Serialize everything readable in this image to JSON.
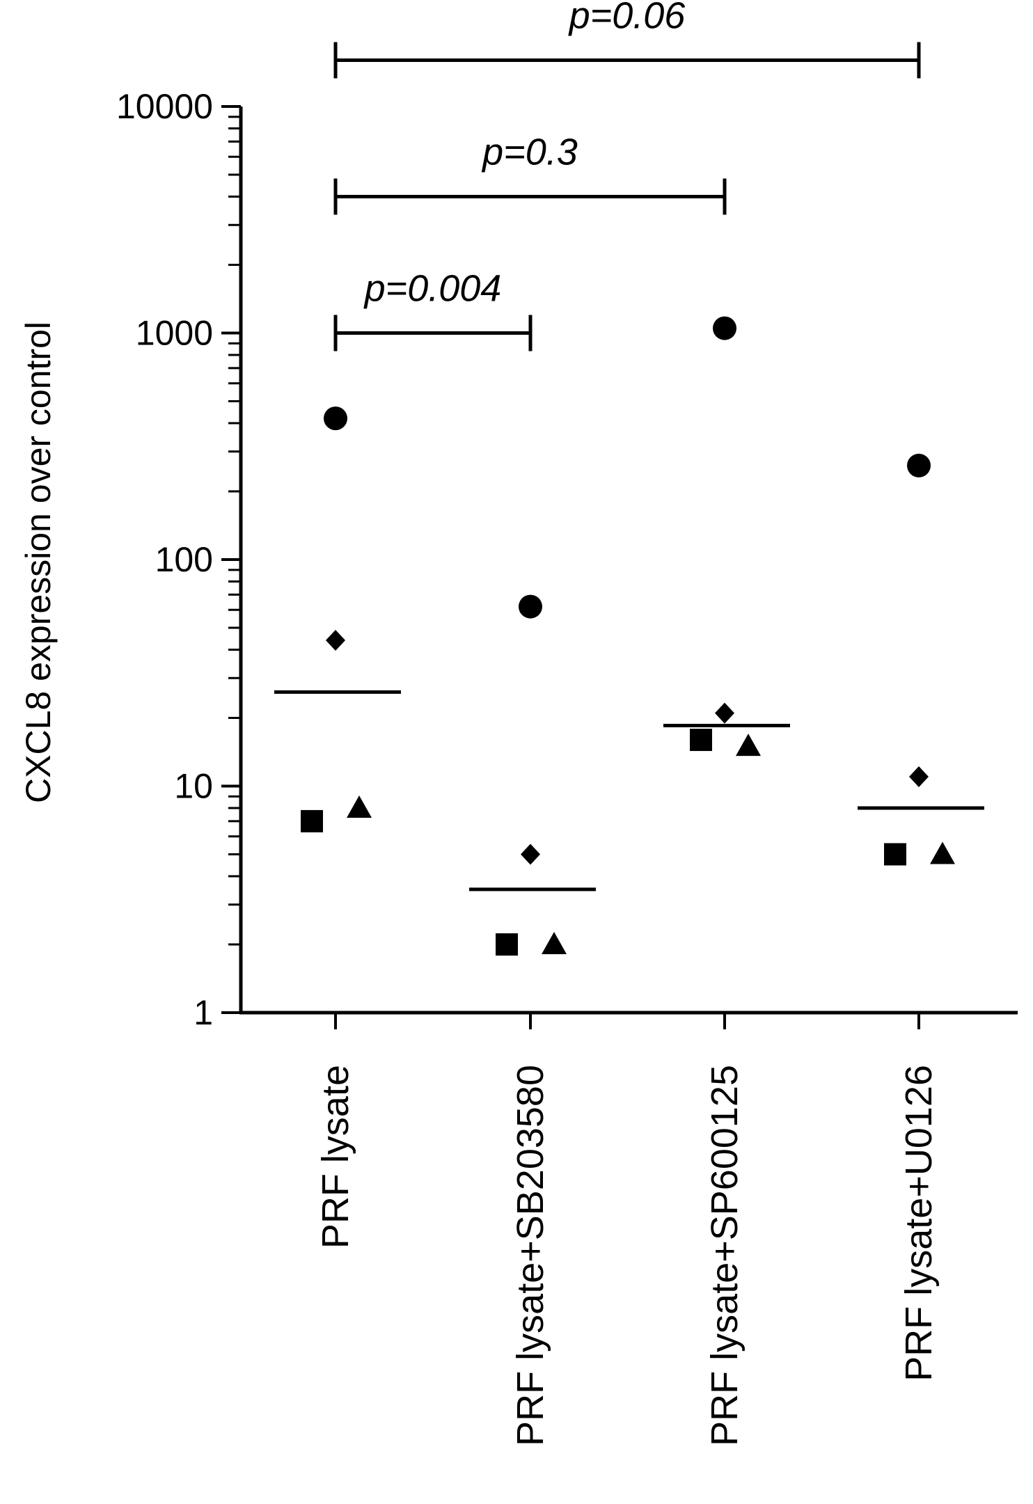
{
  "chart_data": {
    "type": "scatter",
    "ylabel": "CXCL8 expression over control",
    "yscale": "log",
    "ylim": [
      1,
      10000
    ],
    "yticks": [
      1,
      10,
      100,
      1000,
      10000
    ],
    "ytick_labels": [
      "1",
      "10",
      "100",
      "1000",
      "10000"
    ],
    "categories": [
      "PRF lysate",
      "PRF lysate+SB203580",
      "PRF lysate+SP600125",
      "PRF lysate+U0126"
    ],
    "series": [
      {
        "name": "circle",
        "marker": "circle",
        "values": [
          420,
          62,
          1050,
          260
        ]
      },
      {
        "name": "diamond",
        "marker": "diamond",
        "values": [
          44,
          5,
          21,
          11
        ]
      },
      {
        "name": "square",
        "marker": "square",
        "values": [
          7,
          2,
          16,
          5
        ]
      },
      {
        "name": "triangle",
        "marker": "triangle",
        "values": [
          8,
          2,
          15,
          5
        ]
      }
    ],
    "medians": [
      26,
      3.5,
      18.5,
      8
    ],
    "comparisons": [
      {
        "from": 0,
        "to": 1,
        "label": "p=0.004",
        "y": 1000
      },
      {
        "from": 0,
        "to": 2,
        "label": "p=0.3",
        "y": 4000
      },
      {
        "from": 0,
        "to": 3,
        "label": "p=0.06",
        "y": 16000
      }
    ]
  }
}
